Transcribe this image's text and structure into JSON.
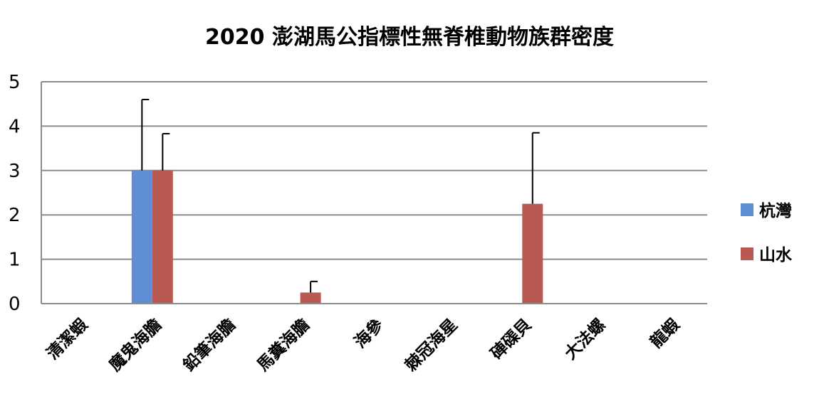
{
  "chart_data": {
    "type": "bar",
    "title": "2020 澎湖馬公指標性無脊椎動物族群密度",
    "xlabel": "",
    "ylabel": "",
    "categories": [
      "清潔蝦",
      "魔鬼海膽",
      "鉛筆海膽",
      "馬糞海膽",
      "海參",
      "棘冠海星",
      "硨磲貝",
      "大法螺",
      "龍蝦"
    ],
    "series": [
      {
        "name": "杭灣",
        "color": "#5f8ed4",
        "values": [
          0,
          3,
          0,
          0,
          0,
          0,
          0,
          0,
          0
        ],
        "errors": [
          0,
          1.6,
          0,
          0,
          0,
          0,
          0,
          0,
          0
        ]
      },
      {
        "name": "山水",
        "color": "#b85a52",
        "values": [
          0,
          3,
          0,
          0.25,
          0,
          0,
          2.25,
          0,
          0
        ],
        "errors": [
          0,
          0.83,
          0,
          0.25,
          0,
          0,
          1.6,
          0,
          0
        ]
      }
    ],
    "ylim": [
      0,
      5
    ],
    "yticks": [
      0,
      1,
      2,
      3,
      4,
      5
    ],
    "grid": true,
    "legend_position": "right"
  }
}
